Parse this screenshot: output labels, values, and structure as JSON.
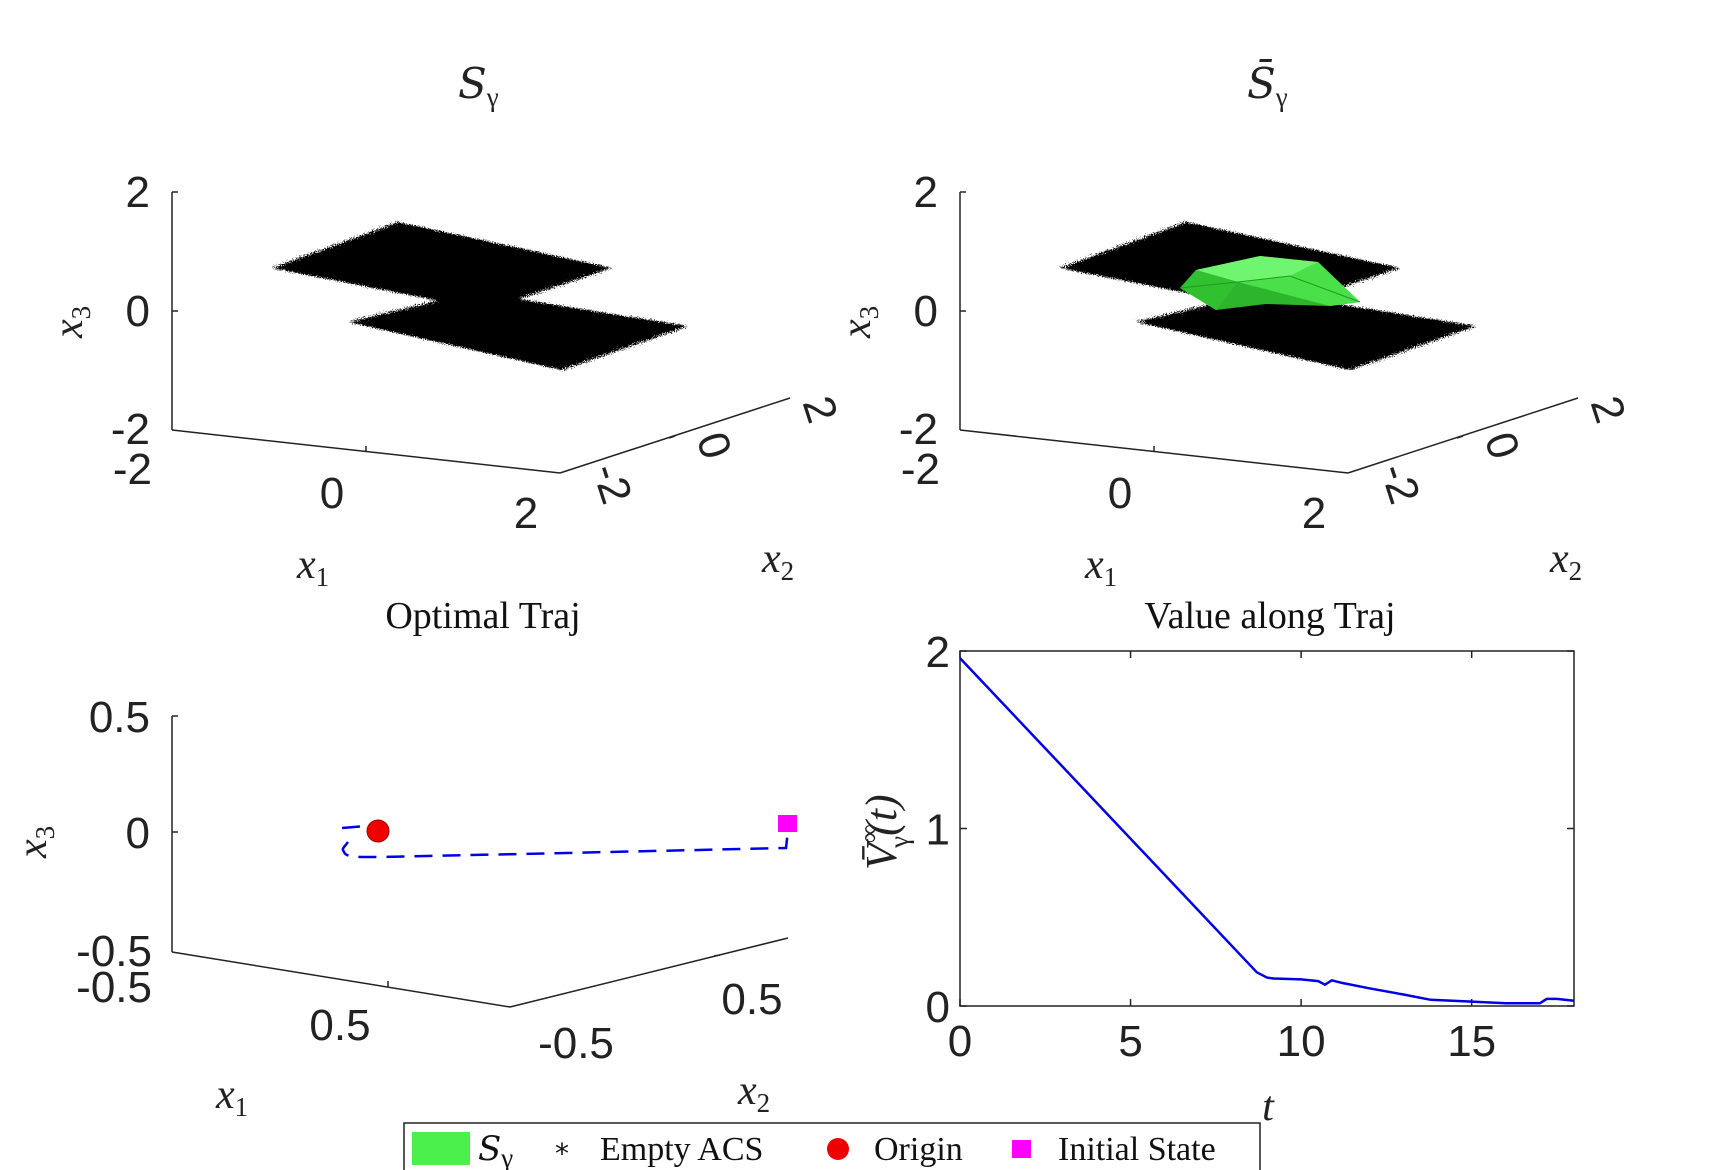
{
  "chart_data": [
    {
      "panel": "top-left",
      "type": "scatter3d",
      "title": "S",
      "title_subscript": "γ",
      "xlabel": "x",
      "xlabel_sub": "1",
      "ylabel": "x",
      "ylabel_sub": "2",
      "zlabel": "x",
      "zlabel_sub": "3",
      "xticks": [
        "-2",
        "0",
        "2"
      ],
      "yticks": [
        "-2",
        "0",
        "2"
      ],
      "zticks": [
        "-2",
        "0",
        "2"
      ],
      "xlim": [
        -2,
        2
      ],
      "ylim": [
        -2,
        2
      ],
      "zlim": [
        -2,
        2
      ]
    },
    {
      "panel": "top-right",
      "type": "scatter3d",
      "title": "S̄",
      "title_subscript": "γ",
      "xlabel": "x",
      "xlabel_sub": "1",
      "ylabel": "x",
      "ylabel_sub": "2",
      "zlabel": "x",
      "zlabel_sub": "3",
      "xticks": [
        "-2",
        "0",
        "2"
      ],
      "yticks": [
        "-2",
        "0",
        "2"
      ],
      "zticks": [
        "-2",
        "0",
        "2"
      ],
      "xlim": [
        -2,
        2
      ],
      "ylim": [
        -2,
        2
      ],
      "zlim": [
        -2,
        2
      ]
    },
    {
      "panel": "bottom-left",
      "type": "line3d",
      "title": "Optimal Traj",
      "xlabel": "x",
      "xlabel_sub": "1",
      "ylabel": "x",
      "ylabel_sub": "2",
      "zlabel": "x",
      "zlabel_sub": "3",
      "xticks": [
        "-0.5",
        "0.5"
      ],
      "yticks": [
        "-0.5",
        "0.5"
      ],
      "zticks": [
        "-0.5",
        "0",
        "0.5"
      ],
      "zlim": [
        -0.5,
        0.5
      ]
    },
    {
      "panel": "bottom-right",
      "type": "line",
      "title": "Value along Traj",
      "xlabel": "t",
      "ylabel": "V̄",
      "ylabel_sup": "∞",
      "ylabel_sub": "γ",
      "ylabel_arg": "(t)",
      "xlim": [
        0,
        18
      ],
      "ylim": [
        0,
        2
      ],
      "xticks": [
        "0",
        "5",
        "10",
        "15"
      ],
      "xtick_values": [
        0,
        5,
        10,
        15
      ],
      "yticks": [
        "0",
        "1",
        "2"
      ],
      "ytick_values": [
        0,
        1,
        2
      ],
      "series": [
        {
          "color": "#0000e6",
          "x": [
            0,
            8.7,
            9.0,
            9.2,
            10,
            10.5,
            10.7,
            10.9,
            11.2,
            12,
            13,
            13.8,
            15,
            16,
            17,
            17.2,
            17.5,
            18
          ],
          "y": [
            1.96,
            0.19,
            0.16,
            0.155,
            0.15,
            0.14,
            0.12,
            0.145,
            0.13,
            0.1,
            0.065,
            0.035,
            0.025,
            0.015,
            0.015,
            0.04,
            0.04,
            0.03
          ]
        }
      ]
    }
  ],
  "legend": {
    "placement": "bottom-center",
    "items": [
      {
        "label": "S",
        "label_sub": "γ",
        "marker": "green-patch",
        "color": "#4cf04c"
      },
      {
        "label": "Empty ACS",
        "marker": "asterisk",
        "color": "#111111"
      },
      {
        "label": "Origin",
        "marker": "circle",
        "color": "#ee0000"
      },
      {
        "label": "Initial State",
        "marker": "square",
        "color": "#ff00ff"
      }
    ]
  },
  "colors": {
    "trajectory": "#0000e6",
    "set_fill": "#000000",
    "safe_set": "#4cf04c",
    "origin": "#ee0000",
    "initial_state": "#ff00ff"
  }
}
